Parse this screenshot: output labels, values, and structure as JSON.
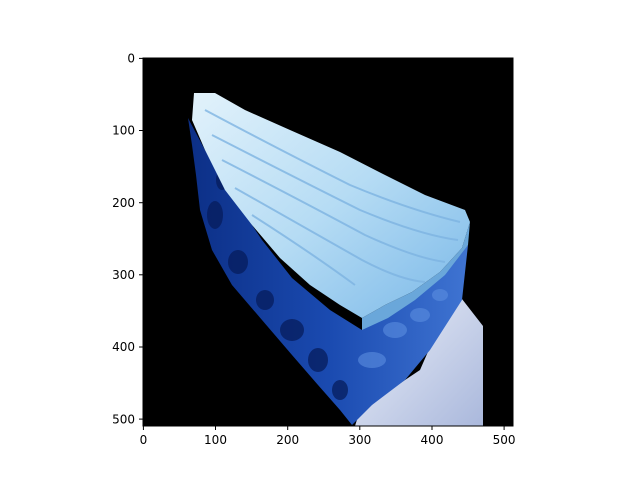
{
  "figure": {
    "background": "#ffffff",
    "image_background": "#000000",
    "image_content": "slice of blue velvet layer cake with light blue frosting on a white plate"
  },
  "axes": {
    "x_ticks": [
      "0",
      "100",
      "200",
      "300",
      "400",
      "500"
    ],
    "y_ticks": [
      "0",
      "100",
      "200",
      "300",
      "400",
      "500"
    ],
    "grid": false
  },
  "colors": {
    "frosting_light": "#d4ecf9",
    "frosting_mid": "#8cc4ec",
    "frosting_shadow": "#5f9fd0",
    "cake_dark": "#0a2a78",
    "cake_mid": "#1a4ab0",
    "cake_light": "#3a6fd0",
    "plate": "#c9d4ea"
  }
}
